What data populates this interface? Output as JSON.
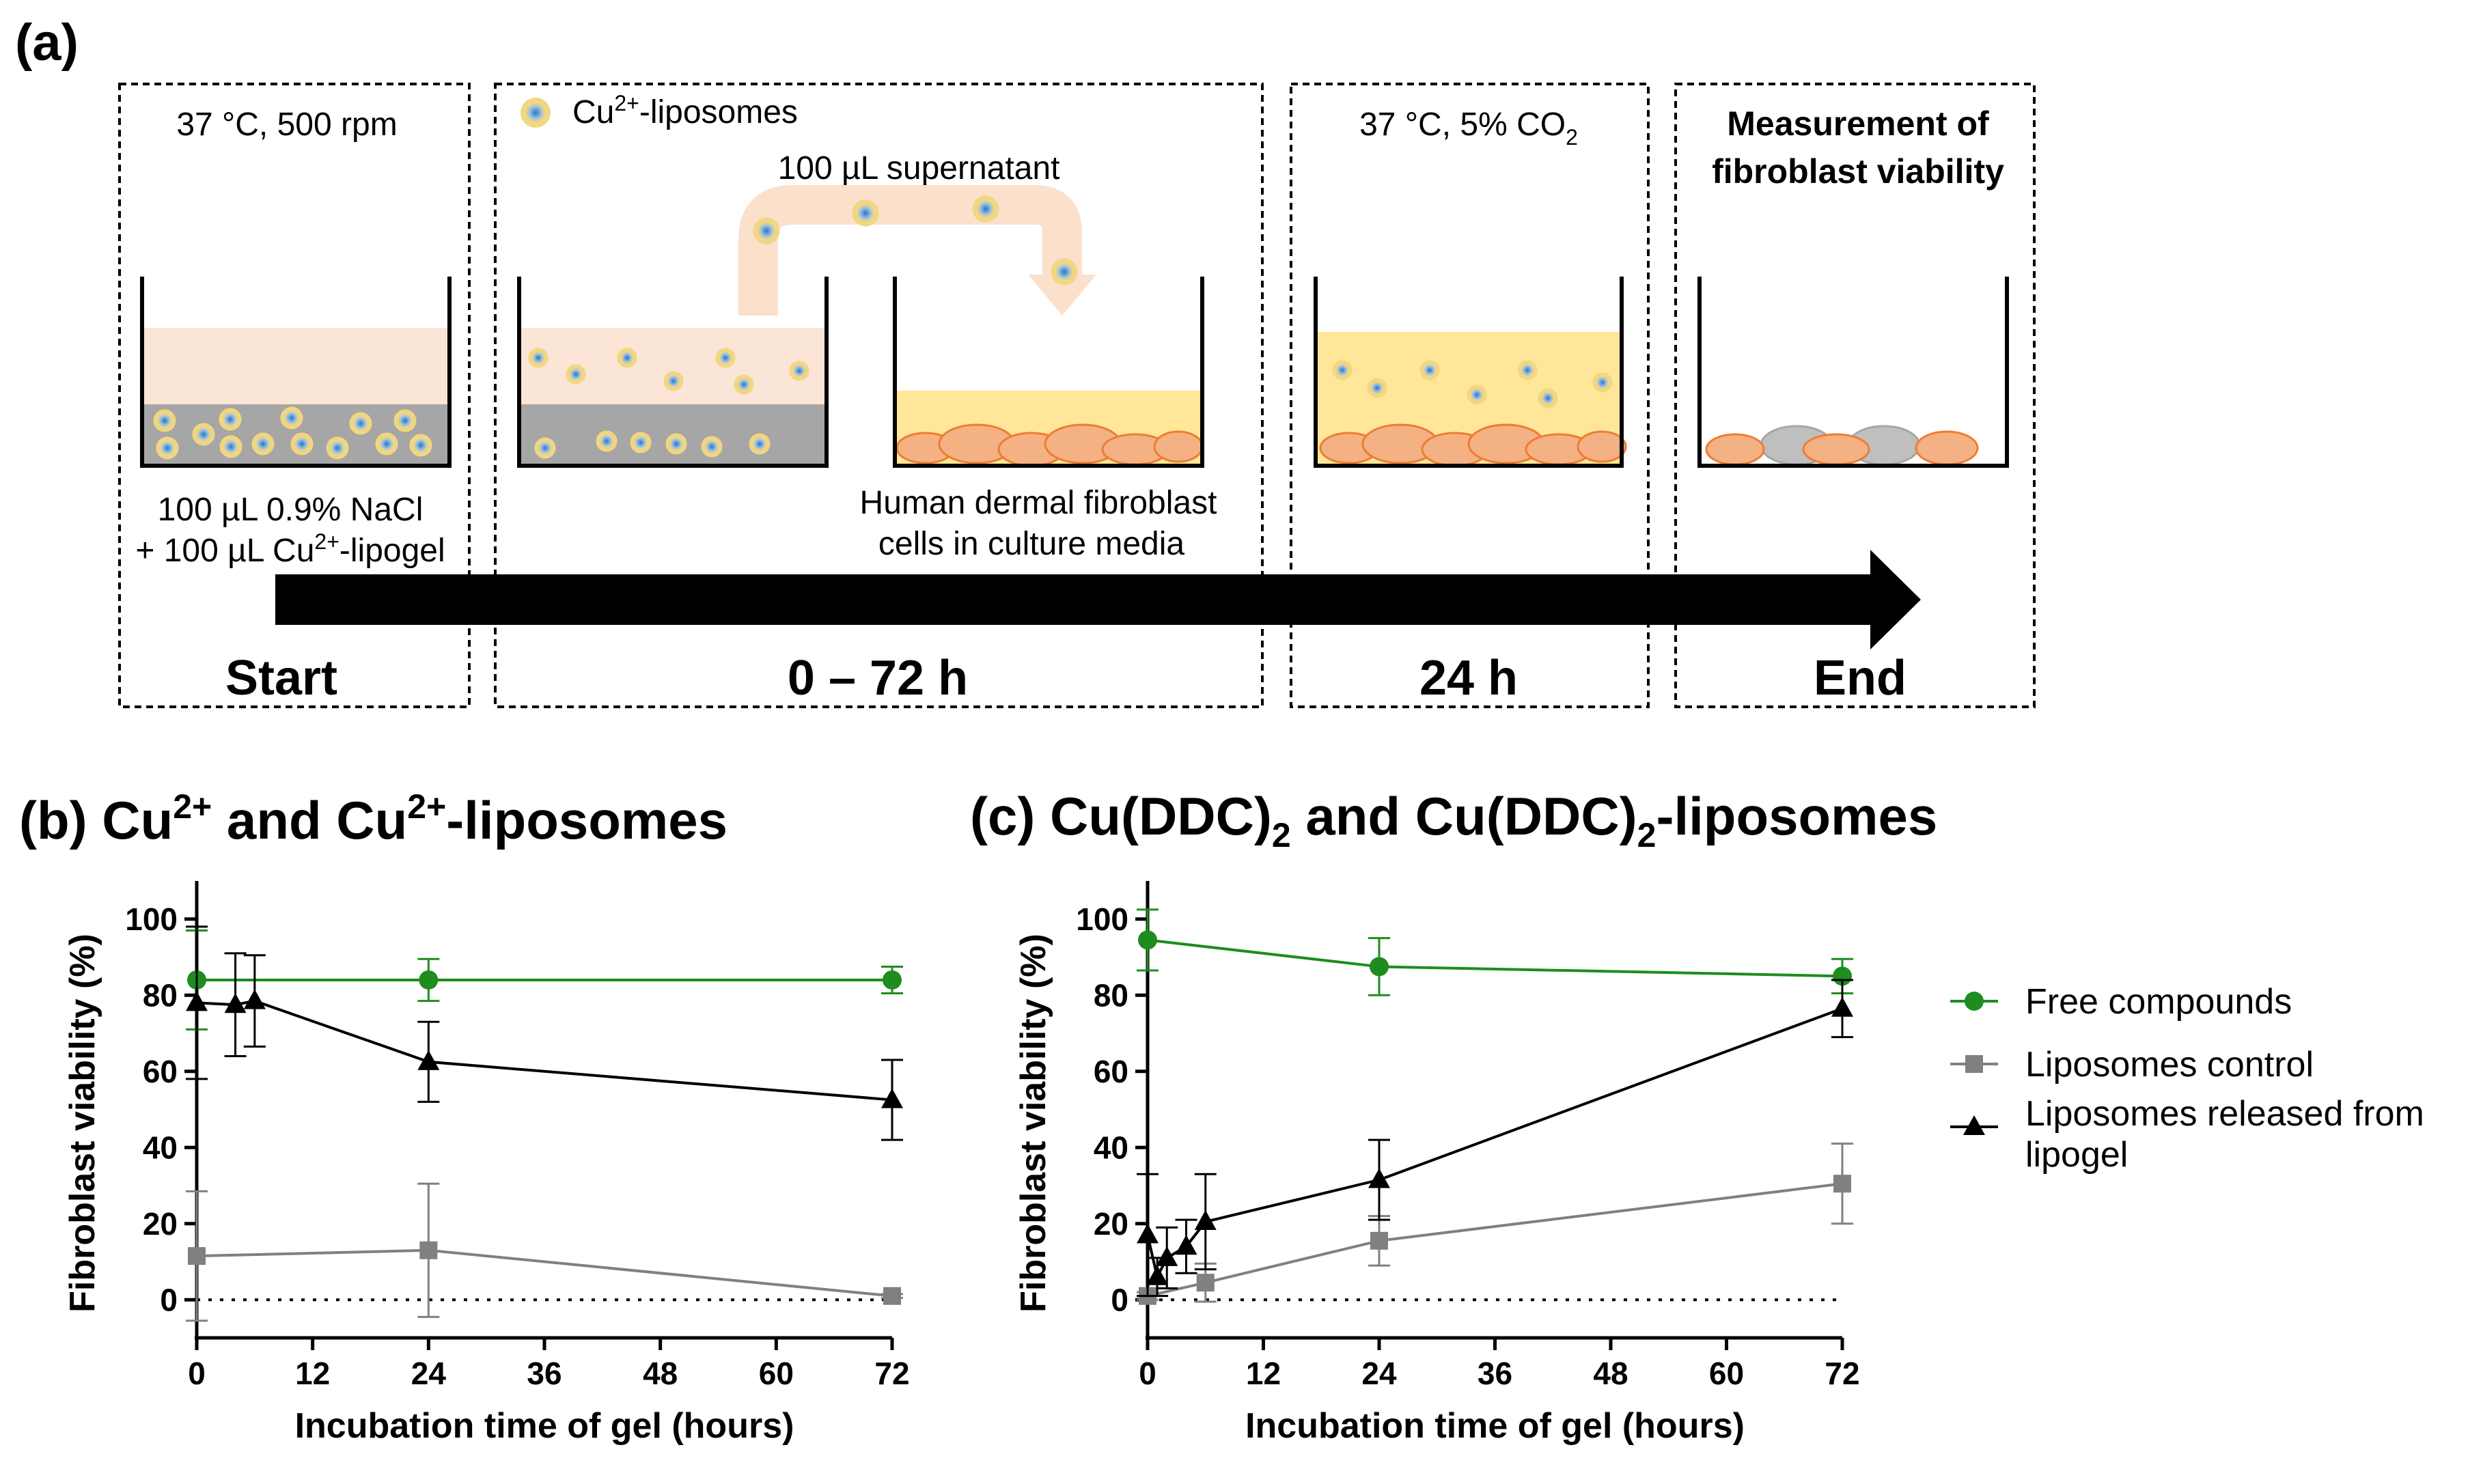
{
  "panel_a": {
    "label": "(a)",
    "step1": {
      "condition": "37 °C, 500 rpm",
      "note_line1": "100 µL 0.9% NaCl",
      "note_line2_pre": "+ 100 µL Cu",
      "note_line2_sup": "2+",
      "note_line2_post": "-lipogel",
      "phase": "Start"
    },
    "step2": {
      "legend_pre": "Cu",
      "legend_sup": "2+",
      "legend_post": "-liposomes",
      "transfer": "100 µL supernatant",
      "cells_line1": "Human dermal fibroblast",
      "cells_line2": "cells in culture media",
      "phase": "0 – 72 h"
    },
    "step3": {
      "condition_pre": "37 °C, 5% CO",
      "condition_sub": "2",
      "phase": "24 h"
    },
    "step4": {
      "title_line1": "Measurement of",
      "title_line2": "fibroblast viability",
      "phase": "End"
    },
    "colors": {
      "liposome_core": "#5b9bd5",
      "liposome_ring": "#f2d680",
      "supernatant": "#fbe5d6",
      "gel": "#a6a6a6",
      "media": "#ffe699",
      "cell": "#f4b183",
      "dead_cell": "#bfbfbf"
    }
  },
  "chart_data": [
    {
      "panel": "(b)",
      "type": "line",
      "title_parts": {
        "a": "Cu",
        "sup1": "2+",
        "b": " and Cu",
        "sup2": "2+",
        "c": "-liposomes"
      },
      "xlabel": "Incubation time of gel (hours)",
      "ylabel": "Fibroblast viability (%)",
      "xlim": [
        0,
        72
      ],
      "ylim": [
        -10,
        110
      ],
      "xticks": [
        0,
        12,
        24,
        36,
        48,
        60,
        72
      ],
      "yticks": [
        0,
        20,
        40,
        60,
        80,
        100
      ],
      "reference_line": 0,
      "series": [
        {
          "name": "Free compounds",
          "color": "#1e8c1e",
          "marker": "circle",
          "x": [
            0,
            24,
            72
          ],
          "y": [
            84,
            84,
            84
          ],
          "err": [
            13,
            5.5,
            3.5
          ]
        },
        {
          "name": "Liposomes control",
          "color": "#808080",
          "marker": "square",
          "x": [
            0,
            24,
            72
          ],
          "y": [
            11.5,
            13,
            1
          ],
          "err": [
            17,
            17.5,
            0.5
          ]
        },
        {
          "name": "Liposomes released from lipogel",
          "color": "#000000",
          "marker": "triangle",
          "x": [
            0,
            4,
            6,
            24,
            72
          ],
          "y": [
            78,
            77.5,
            78.5,
            62.5,
            52.5
          ],
          "err": [
            20,
            13.5,
            12,
            10.5,
            10.5
          ]
        }
      ]
    },
    {
      "panel": "(c)",
      "type": "line",
      "title_parts": {
        "a": "Cu(DDC)",
        "sub1": "2",
        "b": " and Cu(DDC)",
        "sub2": "2",
        "c": "-liposomes"
      },
      "xlabel": "Incubation time of gel (hours)",
      "ylabel": "Fibroblast viability (%)",
      "xlim": [
        0,
        72
      ],
      "ylim": [
        -10,
        110
      ],
      "xticks": [
        0,
        12,
        24,
        36,
        48,
        60,
        72
      ],
      "yticks": [
        0,
        20,
        40,
        60,
        80,
        100
      ],
      "reference_line": 0,
      "series": [
        {
          "name": "Free compounds",
          "color": "#1e8c1e",
          "marker": "circle",
          "x": [
            0,
            24,
            72
          ],
          "y": [
            94.5,
            87.5,
            85
          ],
          "err": [
            8,
            7.5,
            4.5
          ]
        },
        {
          "name": "Liposomes control",
          "color": "#808080",
          "marker": "square",
          "x": [
            0,
            6,
            24,
            72
          ],
          "y": [
            1,
            4.5,
            15.5,
            30.5
          ],
          "err": [
            1,
            5,
            6.5,
            10.5
          ]
        },
        {
          "name": "Liposomes released from lipogel",
          "color": "#000000",
          "marker": "triangle",
          "x": [
            0,
            1,
            2,
            4,
            6,
            24,
            72
          ],
          "y": [
            17,
            6,
            11,
            14,
            20.5,
            31.5,
            76.5
          ],
          "err": [
            16,
            5,
            8,
            7,
            12.5,
            10.5,
            7.5
          ]
        }
      ]
    }
  ],
  "legend": {
    "items": [
      {
        "label": "Free compounds",
        "color": "#1e8c1e",
        "marker": "circle"
      },
      {
        "label": "Liposomes control",
        "color": "#808080",
        "marker": "square"
      },
      {
        "label_line1": "Liposomes released from",
        "label_line2": "lipogel",
        "color": "#000000",
        "marker": "triangle"
      }
    ]
  }
}
